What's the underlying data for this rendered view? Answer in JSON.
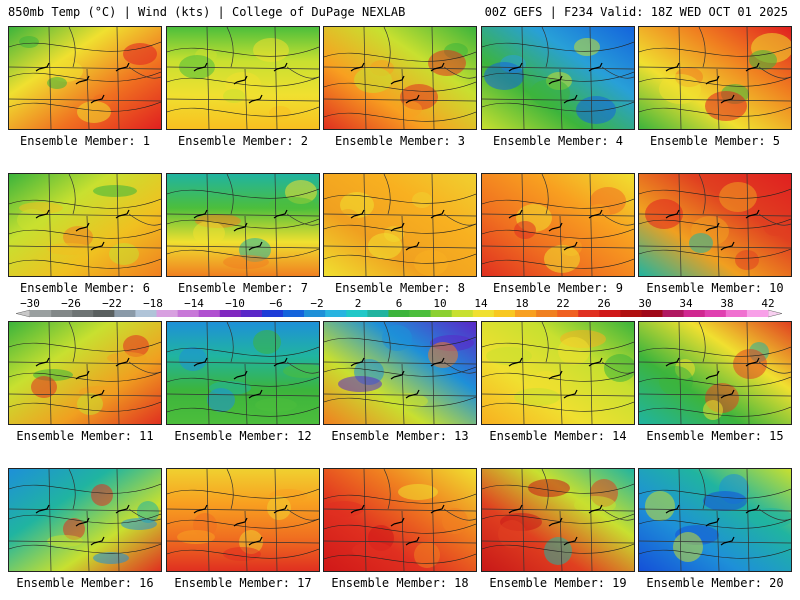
{
  "header": {
    "title": "850mb Temp (°C) | Wind (kts) | College of DuPage NEXLAB",
    "run_info": "00Z GEFS | F234 Valid: 18Z WED OCT 01 2025"
  },
  "panels": [
    {
      "label": "Ensemble Member: 1",
      "colors": [
        "#3cb43c",
        "#f0e030",
        "#f07020",
        "#e02020"
      ]
    },
    {
      "label": "Ensemble Member: 2",
      "colors": [
        "#4cbe3c",
        "#c8e030",
        "#f0e030",
        "#f8c020"
      ]
    },
    {
      "label": "Ensemble Member: 3",
      "colors": [
        "#3cb43c",
        "#c8e030",
        "#f8a020",
        "#e03020"
      ]
    },
    {
      "label": "Ensemble Member: 4",
      "colors": [
        "#1464dc",
        "#28a0d8",
        "#3cb43c",
        "#c8e030"
      ]
    },
    {
      "label": "Ensemble Member: 5",
      "colors": [
        "#3cb43c",
        "#f0e030",
        "#f08020",
        "#e02020"
      ]
    },
    {
      "label": "Ensemble Member: 6",
      "colors": [
        "#3cb43c",
        "#c8e030",
        "#f0c020",
        "#f08020"
      ]
    },
    {
      "label": "Ensemble Member: 7",
      "colors": [
        "#20b4a0",
        "#4cbe3c",
        "#f0e030",
        "#f08020"
      ]
    },
    {
      "label": "Ensemble Member: 8",
      "colors": [
        "#f0d030",
        "#f8b020",
        "#f0a020",
        "#f0e030"
      ]
    },
    {
      "label": "Ensemble Member: 9",
      "colors": [
        "#f0e030",
        "#f8a020",
        "#f07020",
        "#e03020"
      ]
    },
    {
      "label": "Ensemble Member: 10",
      "colors": [
        "#20b4a0",
        "#f0a020",
        "#e04020",
        "#e02020"
      ]
    },
    {
      "label": "Ensemble Member: 11",
      "colors": [
        "#3cb43c",
        "#c8e030",
        "#f0a020",
        "#e03020"
      ]
    },
    {
      "label": "Ensemble Member: 12",
      "colors": [
        "#1e90d8",
        "#20b4a0",
        "#3cb43c",
        "#4cbe3c"
      ]
    },
    {
      "label": "Ensemble Member: 13",
      "colors": [
        "#5a28c8",
        "#1e90d8",
        "#c8e030",
        "#f08020"
      ]
    },
    {
      "label": "Ensemble Member: 14",
      "colors": [
        "#3cb43c",
        "#c8e030",
        "#f0e030",
        "#f8b020"
      ]
    },
    {
      "label": "Ensemble Member: 15",
      "colors": [
        "#20b4a0",
        "#3cb43c",
        "#f0e030",
        "#e04020"
      ]
    },
    {
      "label": "Ensemble Member: 16",
      "colors": [
        "#1e90d8",
        "#20b4a0",
        "#c8e030",
        "#e03020"
      ]
    },
    {
      "label": "Ensemble Member: 17",
      "colors": [
        "#f0d030",
        "#f8a020",
        "#f07020",
        "#e03020"
      ]
    },
    {
      "label": "Ensemble Member: 18",
      "colors": [
        "#f0e030",
        "#f08020",
        "#e03020",
        "#d01818"
      ]
    },
    {
      "label": "Ensemble Member: 19",
      "colors": [
        "#20b4a0",
        "#c8e030",
        "#e04020",
        "#c81818"
      ]
    },
    {
      "label": "Ensemble Member: 20",
      "colors": [
        "#1450d8",
        "#1e90d8",
        "#20b4a0",
        "#c8e030"
      ]
    }
  ],
  "colorbar": {
    "tick_labels": [
      "−30",
      "−26",
      "−22",
      "−18",
      "−14",
      "−10",
      "−6",
      "−2",
      "2",
      "6",
      "10",
      "14",
      "18",
      "22",
      "26",
      "30",
      "34",
      "38",
      "42"
    ],
    "colors": [
      "#9aa0a0",
      "#828888",
      "#6e7474",
      "#5a6060",
      "#8a9aa8",
      "#b0c4d8",
      "#d8a0e0",
      "#c878d8",
      "#b050d0",
      "#8028c0",
      "#5a28c8",
      "#1e3cd8",
      "#1464dc",
      "#1e90d8",
      "#28b4e0",
      "#20c8c8",
      "#20b4a0",
      "#3cb43c",
      "#4cbe3c",
      "#8cd030",
      "#c8e030",
      "#f0e030",
      "#f8c820",
      "#f8a020",
      "#f08020",
      "#f06020",
      "#e03020",
      "#d01818",
      "#b01010",
      "#a00818",
      "#b01860",
      "#d02890",
      "#e040b0",
      "#f070d0",
      "#f8a0e8"
    ]
  }
}
